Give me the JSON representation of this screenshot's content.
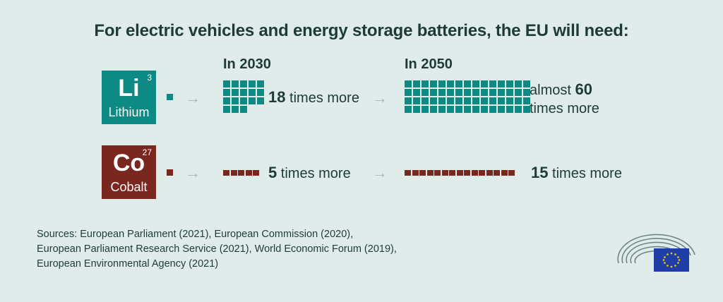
{
  "title": "For electric vehicles and energy storage batteries, the EU will need:",
  "years": {
    "y2030": "In 2030",
    "y2050": "In 2050"
  },
  "elements": {
    "lithium": {
      "symbol": "Li",
      "number": "3",
      "name": "Lithium",
      "color": "#0d8a84",
      "mult_2030": "18",
      "suffix_2030": " times more",
      "prefix_2050": "almost ",
      "mult_2050": "60",
      "suffix_2050": "times more",
      "grid_2030_units": 18,
      "grid_2050_units": 60
    },
    "cobalt": {
      "symbol": "Co",
      "number": "27",
      "name": "Cobalt",
      "color": "#7a2720",
      "mult_2030": "5",
      "suffix_2030": " times more",
      "mult_2050": "15",
      "suffix_2050": " times more",
      "bar_2030_units": 5,
      "bar_2050_units": 15
    }
  },
  "arrow_glyph": "→",
  "sources": [
    "Sources: European Parliament (2021), European Commission (2020),",
    "European Parliament Research Service (2021), World Economic Forum (2019),",
    "European Environmental Agency (2021)"
  ]
}
